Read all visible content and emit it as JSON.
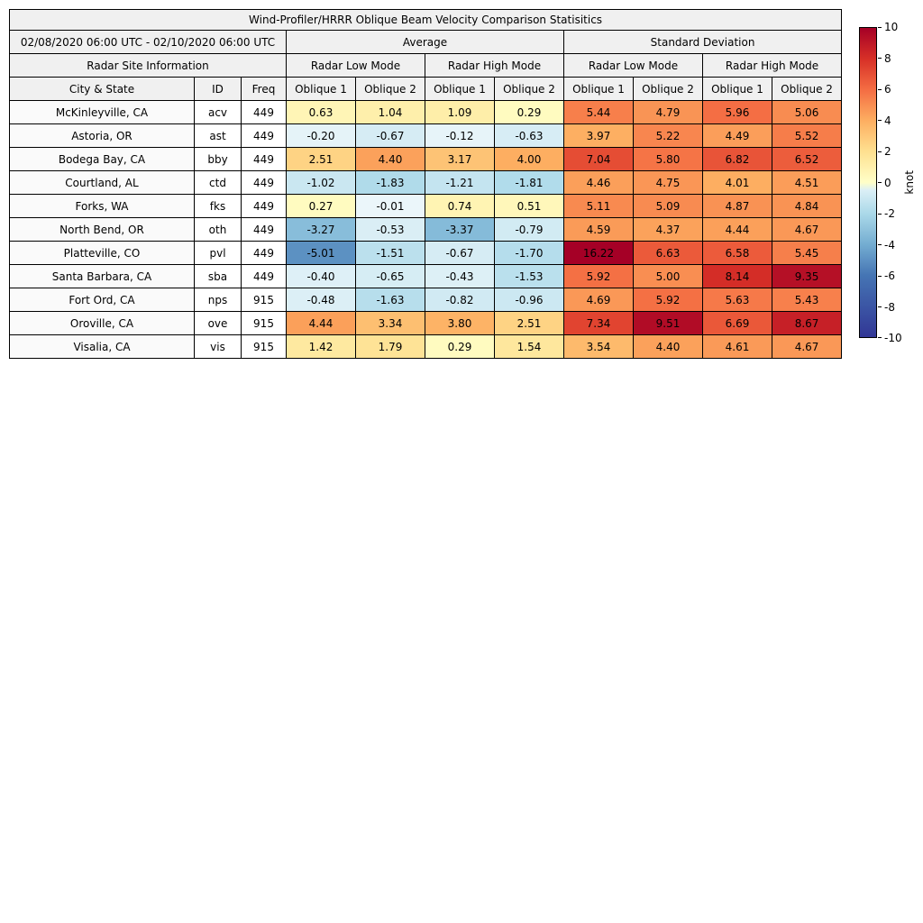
{
  "chart_data": {
    "type": "heatmap",
    "title": "Wind-Profiler/HRRR Oblique Beam Velocity Comparison Statisitics",
    "date_range": "02/08/2020 06:00 UTC - 02/10/2020 06:00 UTC",
    "group_headers": [
      "Average",
      "Standard Deviation"
    ],
    "site_info_header": "Radar Site Information",
    "mode_headers": [
      "Radar Low Mode",
      "Radar High Mode",
      "Radar Low Mode",
      "Radar High Mode"
    ],
    "column_headers": [
      "City & State",
      "ID",
      "Freq",
      "Oblique 1",
      "Oblique 2",
      "Oblique 1",
      "Oblique 2",
      "Oblique 1",
      "Oblique 2",
      "Oblique 1",
      "Oblique 2"
    ],
    "rows": [
      {
        "city": "McKinleyville, CA",
        "id": "acv",
        "freq": "449",
        "values": [
          0.63,
          1.04,
          1.09,
          0.29,
          5.44,
          4.79,
          5.96,
          5.06
        ]
      },
      {
        "city": "Astoria, OR",
        "id": "ast",
        "freq": "449",
        "values": [
          -0.2,
          -0.67,
          -0.12,
          -0.63,
          3.97,
          5.22,
          4.49,
          5.52
        ]
      },
      {
        "city": "Bodega Bay, CA",
        "id": "bby",
        "freq": "449",
        "values": [
          2.51,
          4.4,
          3.17,
          4.0,
          7.04,
          5.8,
          6.82,
          6.52
        ]
      },
      {
        "city": "Courtland, AL",
        "id": "ctd",
        "freq": "449",
        "values": [
          -1.02,
          -1.83,
          -1.21,
          -1.81,
          4.46,
          4.75,
          4.01,
          4.51
        ]
      },
      {
        "city": "Forks, WA",
        "id": "fks",
        "freq": "449",
        "values": [
          0.27,
          -0.01,
          0.74,
          0.51,
          5.11,
          5.09,
          4.87,
          4.84
        ]
      },
      {
        "city": "North Bend, OR",
        "id": "oth",
        "freq": "449",
        "values": [
          -3.27,
          -0.53,
          -3.37,
          -0.79,
          4.59,
          4.37,
          4.44,
          4.67
        ]
      },
      {
        "city": "Platteville, CO",
        "id": "pvl",
        "freq": "449",
        "values": [
          -5.01,
          -1.51,
          -0.67,
          -1.7,
          16.22,
          6.63,
          6.58,
          5.45
        ]
      },
      {
        "city": "Santa Barbara, CA",
        "id": "sba",
        "freq": "449",
        "values": [
          -0.4,
          -0.65,
          -0.43,
          -1.53,
          5.92,
          5.0,
          8.14,
          9.35
        ]
      },
      {
        "city": "Fort Ord, CA",
        "id": "nps",
        "freq": "915",
        "values": [
          -0.48,
          -1.63,
          -0.82,
          -0.96,
          4.69,
          5.92,
          5.63,
          5.43
        ]
      },
      {
        "city": "Oroville, CA",
        "id": "ove",
        "freq": "915",
        "values": [
          4.44,
          3.34,
          3.8,
          2.51,
          7.34,
          9.51,
          6.69,
          8.67
        ]
      },
      {
        "city": "Visalia, CA",
        "id": "vis",
        "freq": "915",
        "values": [
          1.42,
          1.79,
          0.29,
          1.54,
          3.54,
          4.4,
          4.61,
          4.67
        ]
      }
    ],
    "colorbar": {
      "label": "knot",
      "min": -10,
      "max": 10,
      "ticks": [
        10,
        8,
        6,
        4,
        2,
        0,
        -2,
        -4,
        -6,
        -8,
        -10
      ]
    },
    "colors": {
      "positive_max": "#a50026",
      "zero": "#ffffc8",
      "negative_max": "#313695",
      "header_bg": "#f0f0f0",
      "border": "#000000"
    }
  }
}
